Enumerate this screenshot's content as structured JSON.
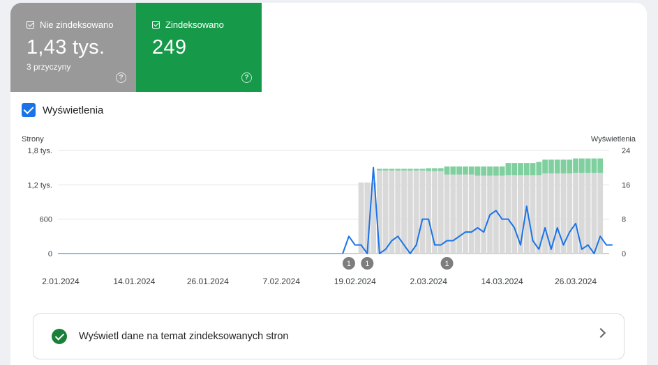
{
  "tiles": {
    "not_indexed": {
      "label": "Nie zindeksowano",
      "value": "1,43 tys.",
      "sub": "3 przyczyny"
    },
    "indexed": {
      "label": "Zindeksowano",
      "value": "249"
    }
  },
  "impressions_toggle": {
    "label": "Wyświetlenia",
    "checked": true
  },
  "colors": {
    "not_indexed": "#d9d9d9",
    "indexed": "#7fcf9f",
    "impressions": "#1a73e8",
    "tile_gray": "#999999",
    "tile_green": "#169a4a"
  },
  "chart_data": {
    "type": "bar",
    "stacked": true,
    "title": "",
    "ylabel": "Strony",
    "y2label": "Wyświetlenia",
    "ylim": [
      0,
      1800
    ],
    "y2lim": [
      0,
      24
    ],
    "yticks": [
      "1,8 tys.",
      "1,2 tys.",
      "600",
      "0"
    ],
    "y2ticks": [
      "24",
      "16",
      "8",
      "0"
    ],
    "xticks": [
      "2.01.2024",
      "14.01.2024",
      "26.01.2024",
      "7.02.2024",
      "19.02.2024",
      "2.03.2024",
      "14.03.2024",
      "26.03.2024"
    ],
    "x_tick_days": [
      1,
      13,
      25,
      37,
      49,
      61,
      73,
      85
    ],
    "first_day": 1,
    "last_day": 90,
    "series": [
      {
        "name": "Nie zindeksowano",
        "start_day": 50,
        "values": [
          1240,
          1240,
          1240,
          1450,
          1450,
          1450,
          1450,
          1450,
          1450,
          1450,
          1450,
          1440,
          1440,
          1440,
          1380,
          1380,
          1380,
          1380,
          1380,
          1360,
          1360,
          1360,
          1360,
          1360,
          1370,
          1370,
          1370,
          1370,
          1370,
          1370,
          1400,
          1400,
          1400,
          1400,
          1400,
          1410,
          1410,
          1410,
          1410,
          1410
        ]
      },
      {
        "name": "Zindeksowano",
        "start_day": 50,
        "values": [
          0,
          0,
          0,
          30,
          30,
          30,
          30,
          30,
          30,
          30,
          30,
          50,
          50,
          50,
          140,
          140,
          140,
          140,
          140,
          160,
          160,
          160,
          160,
          160,
          210,
          210,
          210,
          210,
          210,
          230,
          240,
          240,
          240,
          240,
          240,
          250,
          250,
          250,
          250,
          250
        ]
      }
    ],
    "line": {
      "name": "Wyświetlenia",
      "start_day": 47,
      "values": [
        0,
        4,
        2,
        2,
        0,
        20,
        0,
        1,
        3,
        4,
        2,
        0,
        2,
        8,
        8,
        2,
        2,
        3,
        3,
        4,
        5,
        5,
        6,
        5,
        9,
        10,
        8,
        8,
        6,
        2,
        11,
        3,
        1,
        6,
        1,
        6,
        2,
        5,
        7,
        1,
        2,
        0,
        4,
        2,
        2
      ]
    },
    "annotations": [
      {
        "day": 48,
        "label": "1"
      },
      {
        "day": 51,
        "label": "1"
      },
      {
        "day": 64,
        "label": "1"
      }
    ]
  },
  "link_card": {
    "label": "Wyświetl dane na temat zindeksowanych stron"
  }
}
